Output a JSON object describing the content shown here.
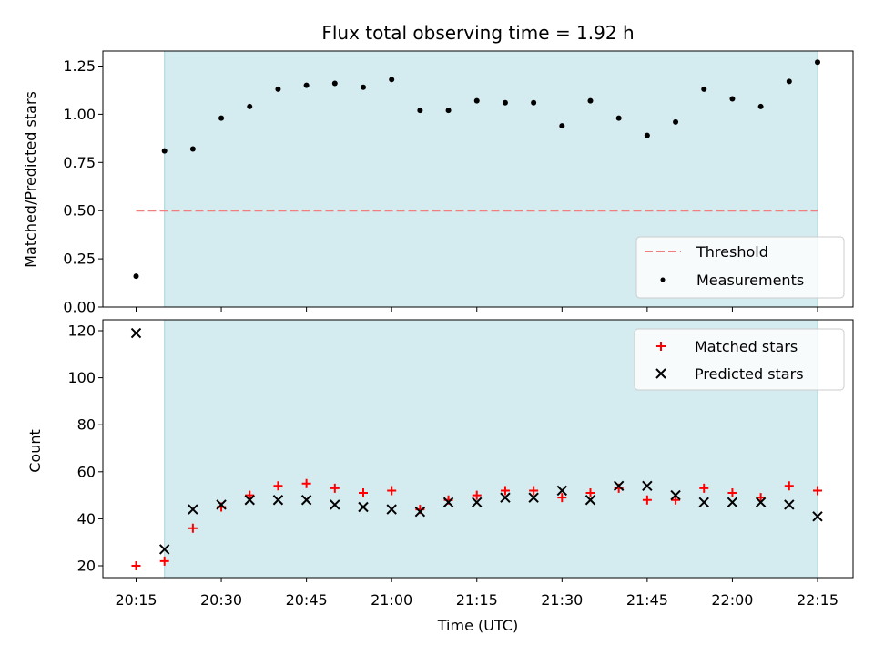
{
  "chart_data": {
    "type": "scatter",
    "title": "Flux total observing time = 1.92 h",
    "xlabel": "Time (UTC)",
    "x_ticks": [
      "20:15",
      "20:30",
      "20:45",
      "21:00",
      "21:15",
      "21:30",
      "21:45",
      "22:00",
      "22:15"
    ],
    "x": [
      "20:15",
      "20:20",
      "20:25",
      "20:30",
      "20:35",
      "20:40",
      "20:45",
      "20:50",
      "20:55",
      "21:00",
      "21:05",
      "21:10",
      "21:15",
      "21:20",
      "21:25",
      "21:30",
      "21:35",
      "21:40",
      "21:45",
      "21:50",
      "21:55",
      "22:00",
      "22:05",
      "22:10",
      "22:15"
    ],
    "shaded_region": {
      "start": "20:20",
      "end": "22:15",
      "color": "#d4ebf0"
    },
    "panels": [
      {
        "ylabel": "Matched/Predicted stars",
        "ylim": [
          0,
          1.33
        ],
        "y_ticks": [
          "0.00",
          "0.25",
          "0.50",
          "0.75",
          "1.00",
          "1.25"
        ],
        "legend_position": "lower-right",
        "threshold": {
          "name": "Threshold",
          "value": 0.5,
          "color": "#f08080",
          "style": "dashed"
        },
        "series": [
          {
            "name": "Measurements",
            "marker": "dot",
            "color": "#000000",
            "values": [
              0.16,
              0.81,
              0.82,
              0.98,
              1.04,
              1.13,
              1.15,
              1.16,
              1.14,
              1.18,
              1.02,
              1.02,
              1.07,
              1.06,
              1.06,
              0.94,
              1.07,
              0.98,
              0.89,
              0.96,
              1.13,
              1.08,
              1.04,
              1.17,
              1.27
            ]
          }
        ]
      },
      {
        "ylabel": "Count",
        "ylim": [
          15,
          125
        ],
        "y_ticks": [
          "20",
          "40",
          "60",
          "80",
          "100",
          "120"
        ],
        "legend_position": "upper-right",
        "series": [
          {
            "name": "Matched stars",
            "marker": "plus",
            "color": "#ff0000",
            "values": [
              20,
              22,
              36,
              45,
              50,
              54,
              55,
              53,
              51,
              52,
              44,
              48,
              50,
              52,
              52,
              49,
              51,
              53,
              48,
              48,
              53,
              51,
              49,
              54,
              52
            ]
          },
          {
            "name": "Predicted stars",
            "marker": "x",
            "color": "#000000",
            "values": [
              119,
              27,
              44,
              46,
              48,
              48,
              48,
              46,
              45,
              44,
              43,
              47,
              47,
              49,
              49,
              52,
              48,
              54,
              54,
              50,
              47,
              47,
              47,
              46,
              41
            ]
          }
        ]
      }
    ]
  }
}
